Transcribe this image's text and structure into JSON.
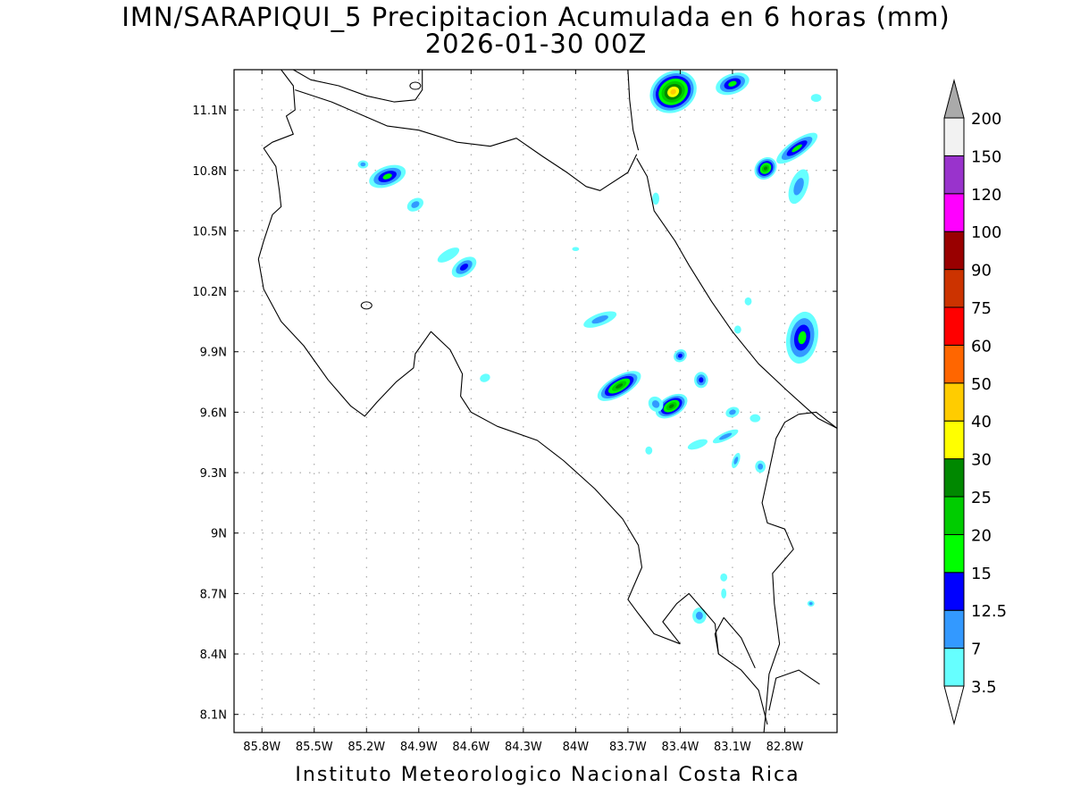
{
  "title": {
    "line1": "IMN/SARAPIQUI_5 Precipitacion Acumulada en 6 horas (mm)",
    "line2": "2026-01-30 00Z"
  },
  "footer": "Instituto Meteorologico Nacional Costa Rica",
  "map": {
    "lon_range": [
      -85.96,
      -82.5
    ],
    "lat_range": [
      8.01,
      11.3
    ],
    "lon_ticks": [
      {
        "v": -85.8,
        "label": "85.8W"
      },
      {
        "v": -85.5,
        "label": "85.5W"
      },
      {
        "v": -85.2,
        "label": "85.2W"
      },
      {
        "v": -84.9,
        "label": "84.9W"
      },
      {
        "v": -84.6,
        "label": "84.6W"
      },
      {
        "v": -84.3,
        "label": "84.3W"
      },
      {
        "v": -84.0,
        "label": "84W"
      },
      {
        "v": -83.7,
        "label": "83.7W"
      },
      {
        "v": -83.4,
        "label": "83.4W"
      },
      {
        "v": -83.1,
        "label": "83.1W"
      },
      {
        "v": -82.8,
        "label": "82.8W"
      }
    ],
    "lat_ticks": [
      {
        "v": 8.1,
        "label": "8.1N"
      },
      {
        "v": 8.4,
        "label": "8.4N"
      },
      {
        "v": 8.7,
        "label": "8.7N"
      },
      {
        "v": 9.0,
        "label": "9N"
      },
      {
        "v": 9.3,
        "label": "9.3N"
      },
      {
        "v": 9.6,
        "label": "9.6N"
      },
      {
        "v": 9.9,
        "label": "9.9N"
      },
      {
        "v": 10.2,
        "label": "10.2N"
      },
      {
        "v": 10.5,
        "label": "10.5N"
      },
      {
        "v": 10.8,
        "label": "10.8N"
      },
      {
        "v": 11.1,
        "label": "11.1N"
      }
    ],
    "grid": "dotted",
    "coastline_color": "#000000"
  },
  "colorbar": {
    "levels": [
      "3.5",
      "7",
      "12.5",
      "15",
      "20",
      "25",
      "30",
      "40",
      "50",
      "60",
      "75",
      "90",
      "100",
      "120",
      "150",
      "200"
    ],
    "colors": [
      "#ffffff",
      "#66ffff",
      "#3399ff",
      "#0000ff",
      "#00ff00",
      "#00cc00",
      "#008800",
      "#ffff00",
      "#ffcc00",
      "#ff6600",
      "#ff0000",
      "#cc3300",
      "#990000",
      "#ff00ff",
      "#9933cc",
      "#f2f2f2",
      "#aaaaaa"
    ]
  },
  "precip_cells": [
    {
      "lon": -83.44,
      "lat": 11.19,
      "rx": 0.14,
      "ry": 0.1,
      "peak": "40",
      "rot": -30
    },
    {
      "lon": -83.1,
      "lat": 11.23,
      "rx": 0.1,
      "ry": 0.05,
      "peak": "15",
      "rot": -20
    },
    {
      "lon": -82.91,
      "lat": 10.81,
      "rx": 0.07,
      "ry": 0.05,
      "peak": "25",
      "rot": -45
    },
    {
      "lon": -82.73,
      "lat": 10.91,
      "rx": 0.14,
      "ry": 0.04,
      "peak": "15",
      "rot": -35
    },
    {
      "lon": -82.72,
      "lat": 10.72,
      "rx": 0.05,
      "ry": 0.09,
      "peak": "7",
      "rot": 20
    },
    {
      "lon": -85.08,
      "lat": 10.77,
      "rx": 0.11,
      "ry": 0.05,
      "peak": "15",
      "rot": -20
    },
    {
      "lon": -85.22,
      "lat": 10.83,
      "rx": 0.03,
      "ry": 0.02,
      "peak": "7",
      "rot": 0
    },
    {
      "lon": -84.92,
      "lat": 10.63,
      "rx": 0.05,
      "ry": 0.03,
      "peak": "7",
      "rot": -30
    },
    {
      "lon": -84.64,
      "lat": 10.32,
      "rx": 0.08,
      "ry": 0.04,
      "peak": "12.5",
      "rot": -35
    },
    {
      "lon": -84.73,
      "lat": 10.38,
      "rx": 0.07,
      "ry": 0.025,
      "peak": "3.5",
      "rot": -30
    },
    {
      "lon": -83.86,
      "lat": 10.06,
      "rx": 0.1,
      "ry": 0.03,
      "peak": "7",
      "rot": -20
    },
    {
      "lon": -82.7,
      "lat": 9.97,
      "rx": 0.09,
      "ry": 0.13,
      "peak": "15",
      "rot": 10
    },
    {
      "lon": -83.75,
      "lat": 9.73,
      "rx": 0.14,
      "ry": 0.05,
      "peak": "25",
      "rot": -30
    },
    {
      "lon": -83.45,
      "lat": 9.63,
      "rx": 0.1,
      "ry": 0.05,
      "peak": "25",
      "rot": -30
    },
    {
      "lon": -83.4,
      "lat": 9.88,
      "rx": 0.04,
      "ry": 0.03,
      "peak": "12.5",
      "rot": -40
    },
    {
      "lon": -83.28,
      "lat": 9.76,
      "rx": 0.04,
      "ry": 0.04,
      "peak": "12.5",
      "rot": 0
    },
    {
      "lon": -83.54,
      "lat": 9.64,
      "rx": 0.04,
      "ry": 0.04,
      "peak": "7",
      "rot": -40
    },
    {
      "lon": -84.52,
      "lat": 9.77,
      "rx": 0.03,
      "ry": 0.02,
      "peak": "3.5",
      "rot": -20
    },
    {
      "lon": -83.14,
      "lat": 9.48,
      "rx": 0.08,
      "ry": 0.02,
      "peak": "7",
      "rot": -25
    },
    {
      "lon": -83.3,
      "lat": 9.44,
      "rx": 0.06,
      "ry": 0.02,
      "peak": "3.5",
      "rot": -20
    },
    {
      "lon": -83.1,
      "lat": 9.6,
      "rx": 0.04,
      "ry": 0.025,
      "peak": "7",
      "rot": -20
    },
    {
      "lon": -82.97,
      "lat": 9.57,
      "rx": 0.03,
      "ry": 0.02,
      "peak": "3.5",
      "rot": 0
    },
    {
      "lon": -83.08,
      "lat": 9.36,
      "rx": 0.02,
      "ry": 0.04,
      "peak": "7",
      "rot": 20
    },
    {
      "lon": -82.94,
      "lat": 9.33,
      "rx": 0.03,
      "ry": 0.03,
      "peak": "7",
      "rot": 0
    },
    {
      "lon": -83.01,
      "lat": 10.15,
      "rx": 0.02,
      "ry": 0.02,
      "peak": "3.5",
      "rot": 0
    },
    {
      "lon": -83.07,
      "lat": 10.01,
      "rx": 0.02,
      "ry": 0.02,
      "peak": "3.5",
      "rot": 0
    },
    {
      "lon": -83.29,
      "lat": 8.59,
      "rx": 0.04,
      "ry": 0.04,
      "peak": "7",
      "rot": 0
    },
    {
      "lon": -83.15,
      "lat": 8.78,
      "rx": 0.02,
      "ry": 0.02,
      "peak": "3.5",
      "rot": 0
    },
    {
      "lon": -83.15,
      "lat": 8.7,
      "rx": 0.015,
      "ry": 0.025,
      "peak": "3.5",
      "rot": 0
    },
    {
      "lon": -82.65,
      "lat": 8.65,
      "rx": 0.02,
      "ry": 0.015,
      "peak": "7",
      "rot": 0
    },
    {
      "lon": -83.54,
      "lat": 10.66,
      "rx": 0.02,
      "ry": 0.03,
      "peak": "3.5",
      "rot": 0
    },
    {
      "lon": -84.0,
      "lat": 10.41,
      "rx": 0.02,
      "ry": 0.01,
      "peak": "3.5",
      "rot": 0
    },
    {
      "lon": -83.58,
      "lat": 9.41,
      "rx": 0.02,
      "ry": 0.02,
      "peak": "3.5",
      "rot": 0
    },
    {
      "lon": -82.62,
      "lat": 11.16,
      "rx": 0.03,
      "ry": 0.02,
      "peak": "3.5",
      "rot": 0
    }
  ]
}
